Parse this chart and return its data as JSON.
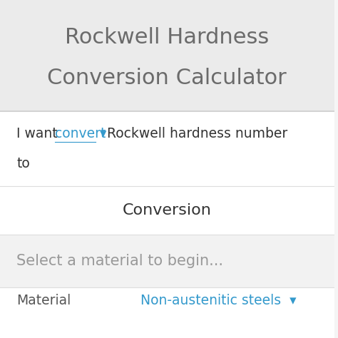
{
  "title_line1": "Rockwell Hardness",
  "title_line2": "Conversion Calculator",
  "title_bg": "#ebebeb",
  "title_text_color": "#6b6b6b",
  "title_fontsize": 22,
  "body_bg": "#ffffff",
  "row1_link": "convert",
  "row1_arrow": "▾",
  "row1_text_after": "Rockwell hardness number",
  "row1_link_color": "#3399cc",
  "row1_text_color": "#333333",
  "row1_fontsize": 13.5,
  "divider_color": "#dddddd",
  "conversion_label": "Conversion",
  "conversion_fontsize": 16,
  "conversion_text_color": "#333333",
  "select_bg": "#f2f2f2",
  "select_text": "Select a material to begin...",
  "select_text_color": "#999999",
  "select_fontsize": 15,
  "material_label": "Material",
  "material_text_color": "#555555",
  "material_fontsize": 13.5,
  "material_value": "Non-austenitic steels",
  "material_value_color": "#3399cc",
  "material_value_fontsize": 13.5,
  "fig_bg": "#f5f5f5"
}
